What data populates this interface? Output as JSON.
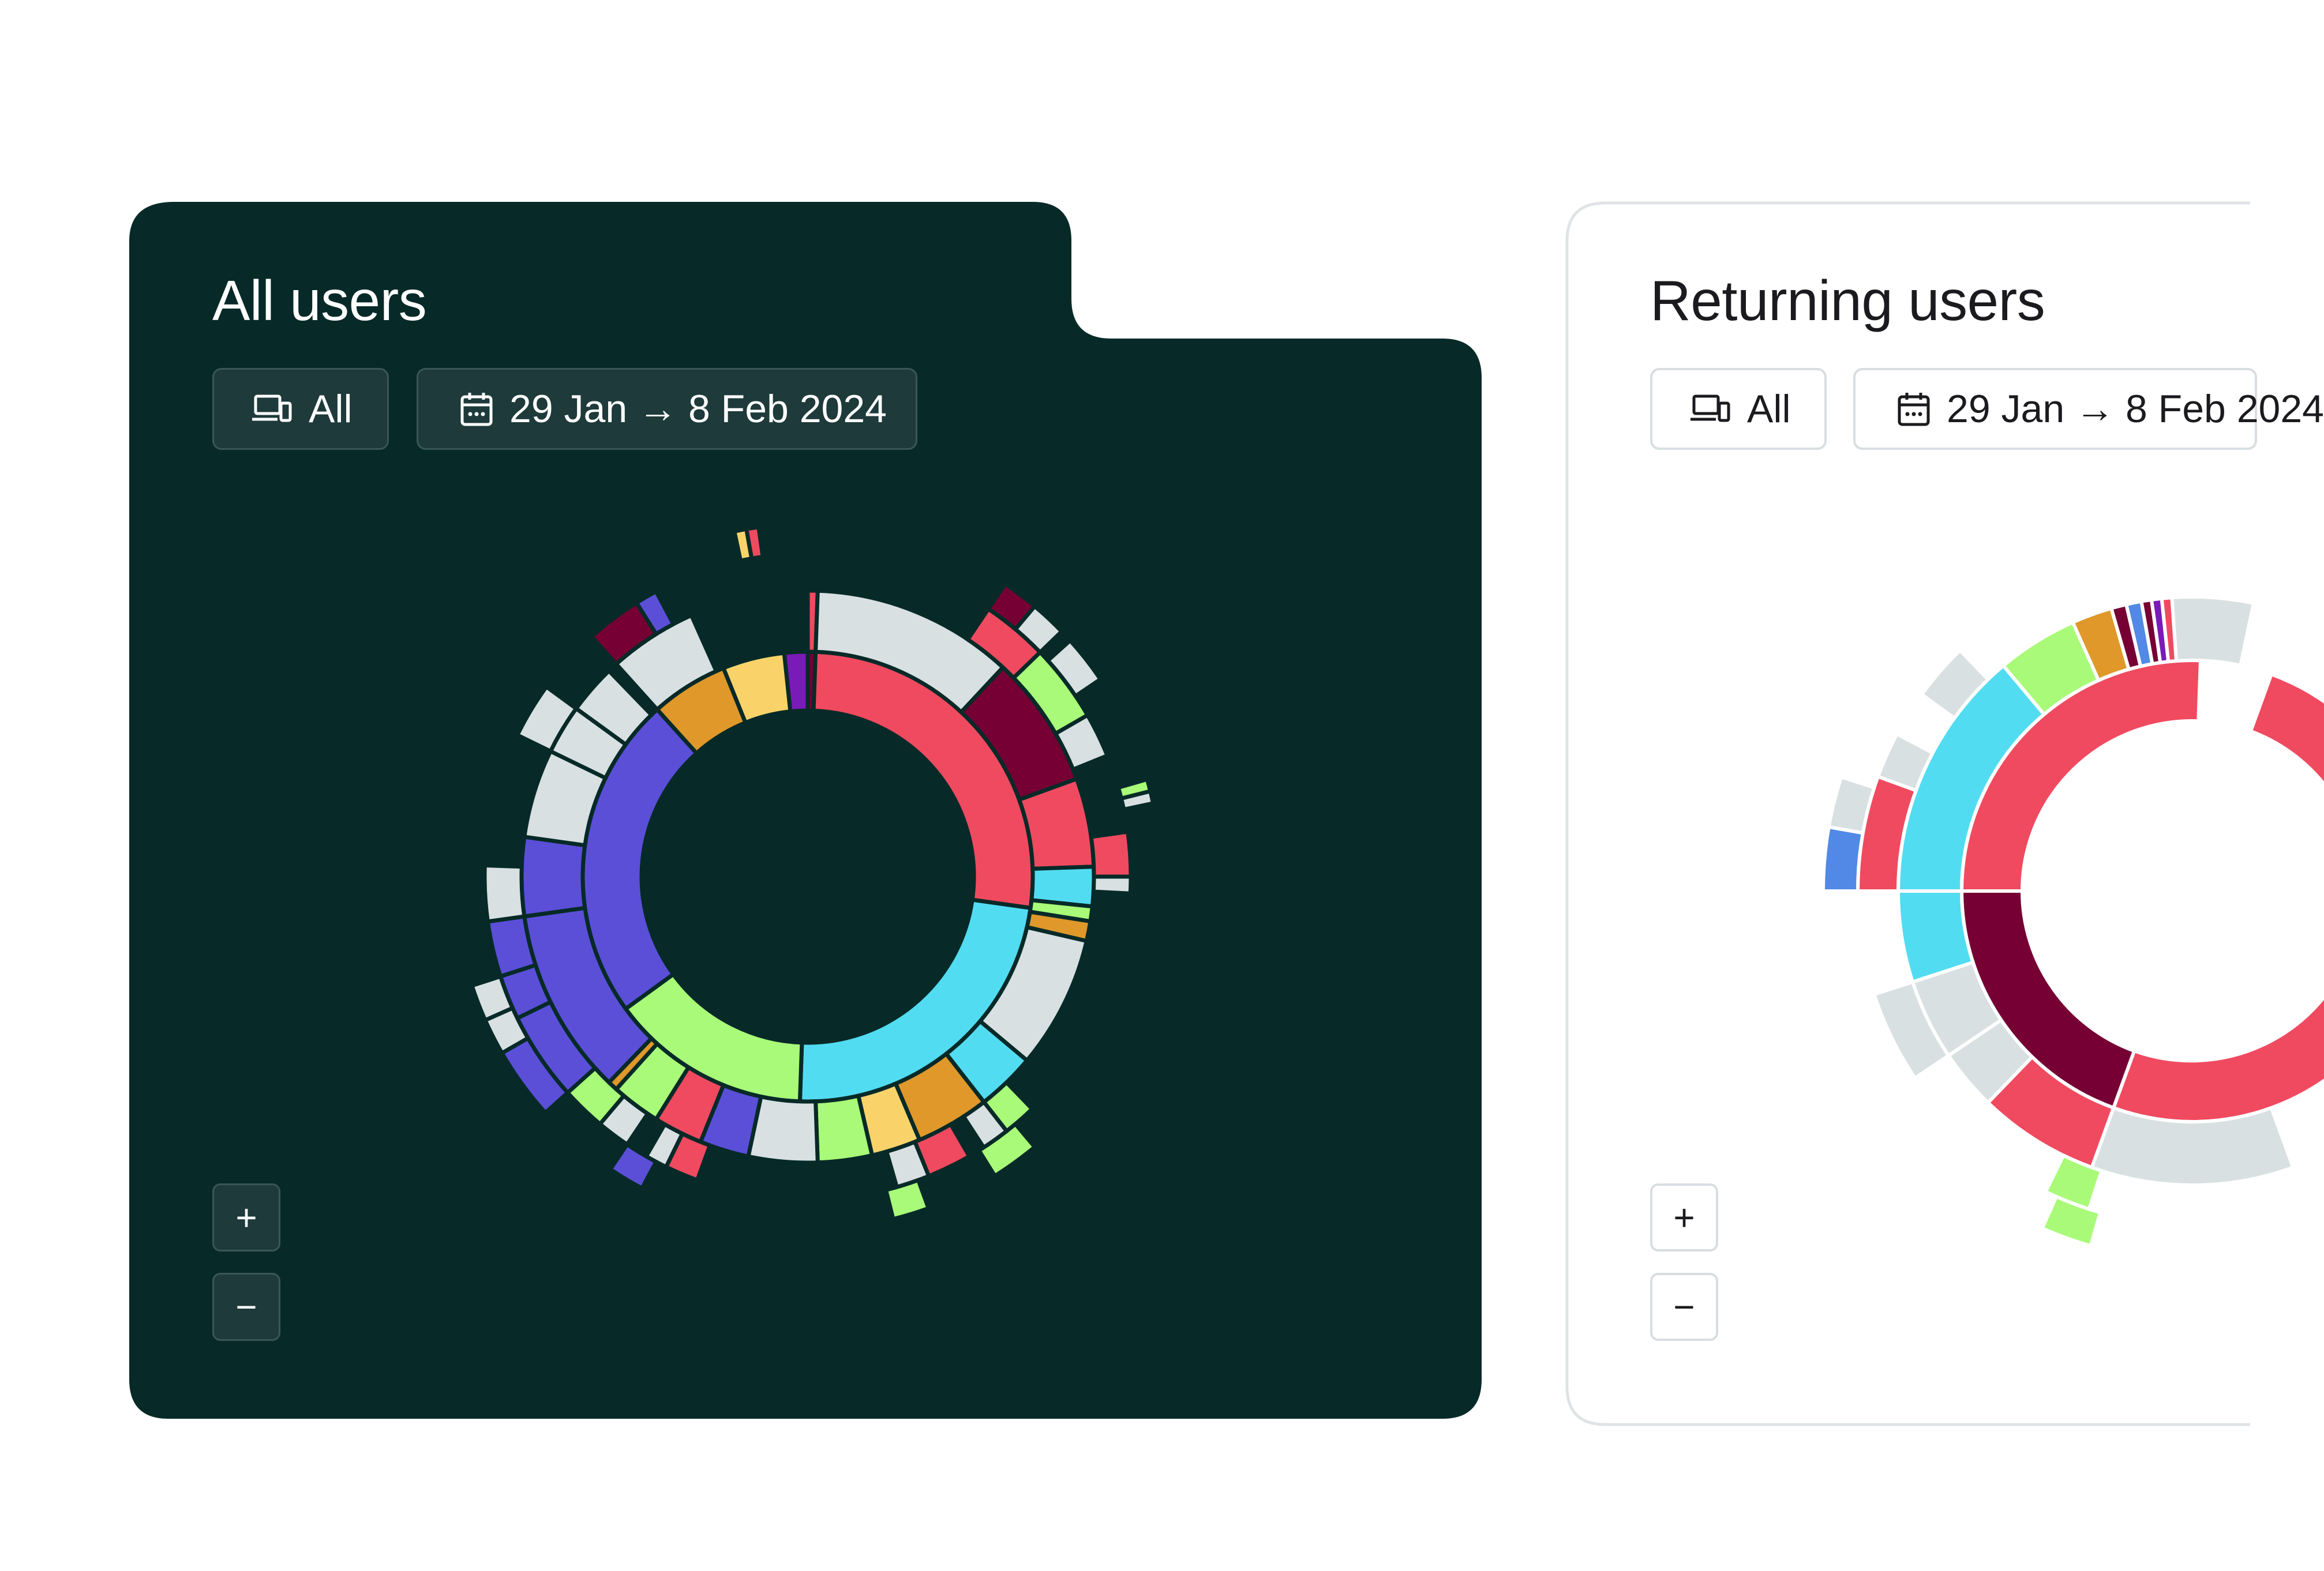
{
  "panels": [
    {
      "title": "All users",
      "device_filter": {
        "label": "All",
        "icon": "devices-icon"
      },
      "date_filter": {
        "label": "29 Jan → 8 Feb 2024",
        "icon": "calendar-icon"
      },
      "zoom_in_label": "+",
      "zoom_out_label": "−",
      "background": "#072a28"
    },
    {
      "title": "Returning users",
      "device_filter": {
        "label": "All",
        "icon": "devices-icon"
      },
      "date_filter": {
        "label": "29 Jan → 8 Feb 2024",
        "icon": "calendar-icon"
      },
      "zoom_in_label": "+",
      "zoom_out_label": "−",
      "background": "#ffffff"
    }
  ],
  "palette": {
    "red": "#f04a60",
    "maroon": "#760033",
    "cyan": "#52dcf2",
    "green": "#a8fa78",
    "yellow": "#f9d36a",
    "orange": "#e0982a",
    "indigo": "#5b4fd8",
    "purple": "#7a1ab8",
    "grey": "#d8e0e2",
    "blue": "#5289e6"
  }
}
